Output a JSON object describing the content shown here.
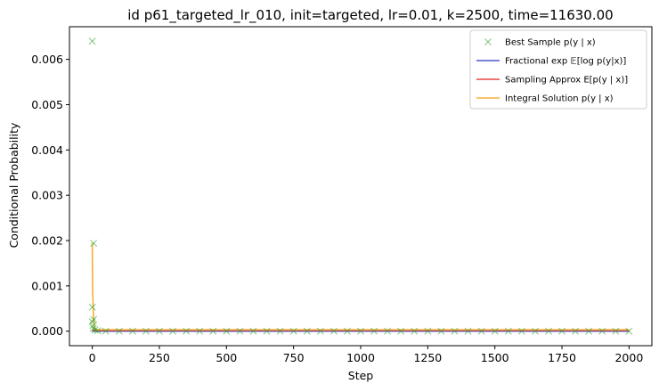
{
  "chart_data": {
    "type": "line",
    "title": "id p61_targeted_lr_010, init=targeted, lr=0.01, k=2500, time=11630.00",
    "xlabel": "Step",
    "ylabel": "Conditional Probability",
    "xlim": [
      -85,
      2085
    ],
    "ylim": [
      -0.00032,
      0.00672
    ],
    "xticks": [
      0,
      250,
      500,
      750,
      1000,
      1250,
      1500,
      1750,
      2000
    ],
    "xtick_labels": [
      "0",
      "250",
      "500",
      "750",
      "1000",
      "1250",
      "1500",
      "1750",
      "2000"
    ],
    "yticks": [
      0.0,
      0.001,
      0.002,
      0.003,
      0.004,
      0.005,
      0.006
    ],
    "ytick_labels": [
      "0.000",
      "0.001",
      "0.002",
      "0.003",
      "0.004",
      "0.005",
      "0.006"
    ],
    "grid": false,
    "legend_position": "top-right",
    "legend": [
      "Best Sample p(y | x)",
      "Fractional exp 𝔼[log p(y|x)]",
      "Sampling Approx E[p(y | x)]",
      "Integral Solution p(y | x)"
    ],
    "series": [
      {
        "name": "Best Sample p(y | x)",
        "style": "markers-x",
        "color": "#2ca02c",
        "points": [
          [
            0,
            0.0064
          ],
          [
            5,
            0.00194
          ],
          [
            0,
            0.00053
          ],
          [
            5,
            0.00026
          ],
          [
            0,
            0.00021
          ],
          [
            2,
            0.00012
          ],
          [
            4,
            6e-05
          ],
          [
            10,
            3e-05
          ],
          [
            20,
            1e-05
          ],
          [
            50,
            0.0
          ],
          [
            100,
            0.0
          ],
          [
            150,
            0.0
          ],
          [
            200,
            0.0
          ],
          [
            250,
            0.0
          ],
          [
            300,
            0.0
          ],
          [
            350,
            0.0
          ],
          [
            400,
            0.0
          ],
          [
            450,
            0.0
          ],
          [
            500,
            0.0
          ],
          [
            550,
            0.0
          ],
          [
            600,
            0.0
          ],
          [
            650,
            0.0
          ],
          [
            700,
            0.0
          ],
          [
            750,
            0.0
          ],
          [
            800,
            0.0
          ],
          [
            850,
            0.0
          ],
          [
            900,
            0.0
          ],
          [
            950,
            0.0
          ],
          [
            1000,
            0.0
          ],
          [
            1050,
            0.0
          ],
          [
            1100,
            0.0
          ],
          [
            1150,
            0.0
          ],
          [
            1200,
            0.0
          ],
          [
            1250,
            0.0
          ],
          [
            1300,
            0.0
          ],
          [
            1350,
            0.0
          ],
          [
            1400,
            0.0
          ],
          [
            1450,
            0.0
          ],
          [
            1500,
            0.0
          ],
          [
            1550,
            0.0
          ],
          [
            1600,
            0.0
          ],
          [
            1650,
            0.0
          ],
          [
            1700,
            0.0
          ],
          [
            1750,
            0.0
          ],
          [
            1800,
            0.0
          ],
          [
            1850,
            0.0
          ],
          [
            1900,
            0.0
          ],
          [
            1950,
            0.0
          ],
          [
            2000,
            0.0
          ]
        ]
      },
      {
        "name": "Fractional exp 𝔼[log p(y|x)]",
        "style": "line",
        "color": "#3b45c9",
        "points": [
          [
            0,
            0.0
          ],
          [
            2000,
            0.0
          ]
        ]
      },
      {
        "name": "Sampling Approx E[p(y | x)]",
        "style": "line",
        "color": "#e8312b",
        "points": [
          [
            0,
            2e-05
          ],
          [
            2000,
            2e-05
          ]
        ]
      },
      {
        "name": "Integral Solution p(y | x)",
        "style": "line",
        "color": "#f5a623",
        "points": [
          [
            0,
            0.00195
          ],
          [
            1,
            0.0011
          ],
          [
            2,
            0.0008
          ],
          [
            3,
            0.0006
          ],
          [
            4,
            0.0004
          ],
          [
            5,
            0.00025
          ],
          [
            7,
            0.0001
          ],
          [
            10,
            5e-05
          ],
          [
            20,
            3e-05
          ],
          [
            50,
            3e-05
          ],
          [
            2000,
            3e-05
          ]
        ]
      }
    ]
  }
}
